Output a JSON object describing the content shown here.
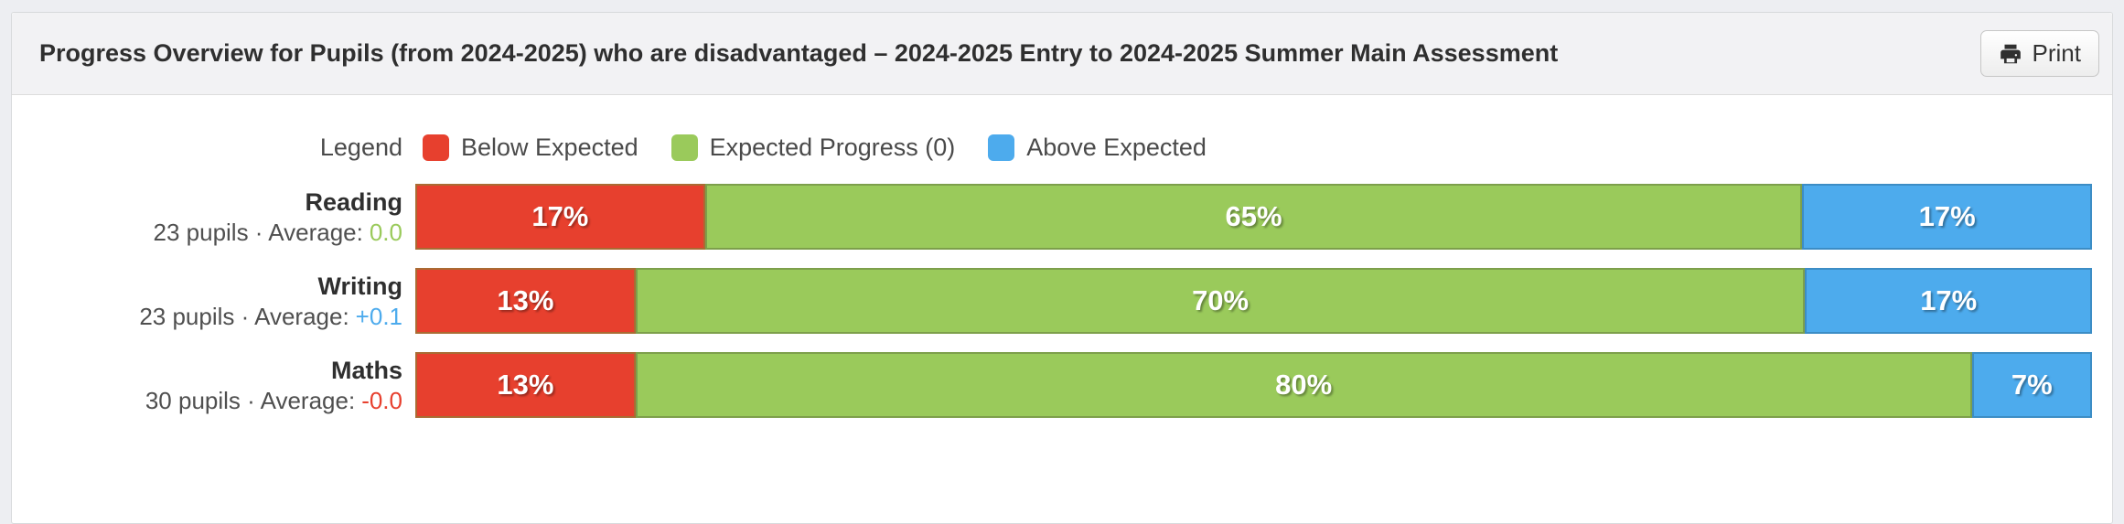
{
  "header": {
    "title": "Progress Overview for Pupils (from 2024-2025) who are disadvantaged – 2024-2025 Entry to 2024-2025 Summer Main Assessment",
    "print_label": "Print"
  },
  "legend": {
    "label": "Legend",
    "items": [
      {
        "key": "below-expected",
        "label": "Below Expected",
        "color": "#e7402e"
      },
      {
        "key": "expected-progress",
        "label": "Expected Progress (0)",
        "color": "#9aca5b"
      },
      {
        "key": "above-expected",
        "label": "Above Expected",
        "color": "#4dabed"
      }
    ]
  },
  "chart_data": {
    "type": "bar",
    "orientation": "horizontal-stacked",
    "value_unit": "%",
    "xlim": [
      0,
      100
    ],
    "categories": [
      "Reading",
      "Writing",
      "Maths"
    ],
    "series": [
      {
        "name": "Below Expected",
        "color": "#e7402e",
        "values": [
          17,
          13,
          13
        ]
      },
      {
        "name": "Expected Progress (0)",
        "color": "#9aca5b",
        "values": [
          65,
          70,
          80
        ]
      },
      {
        "name": "Above Expected",
        "color": "#4dabed",
        "values": [
          17,
          17,
          7
        ]
      }
    ],
    "rows": [
      {
        "label": "Reading",
        "sub_prefix": "23 pupils · Average:",
        "average": "0.0",
        "average_color": "#9aca5b",
        "segments": [
          {
            "key": "below-expected",
            "text": "17%",
            "value": 17,
            "fill": "#e7402e",
            "border": "#aa6b33"
          },
          {
            "key": "expected-progress",
            "text": "65%",
            "value": 65,
            "fill": "#9aca5b",
            "border": "#7d9f4b"
          },
          {
            "key": "above-expected",
            "text": "17%",
            "value": 17,
            "fill": "#4dabed",
            "border": "#3c8dc5"
          }
        ]
      },
      {
        "label": "Writing",
        "sub_prefix": "23 pupils · Average:",
        "average": "+0.1",
        "average_color": "#4dabed",
        "segments": [
          {
            "key": "below-expected",
            "text": "13%",
            "value": 13,
            "fill": "#e7402e",
            "border": "#aa6b33"
          },
          {
            "key": "expected-progress",
            "text": "70%",
            "value": 70,
            "fill": "#9aca5b",
            "border": "#7d9f4b"
          },
          {
            "key": "above-expected",
            "text": "17%",
            "value": 17,
            "fill": "#4dabed",
            "border": "#3c8dc5"
          }
        ]
      },
      {
        "label": "Maths",
        "sub_prefix": "30 pupils · Average:",
        "average": "-0.0",
        "average_color": "#e7402e",
        "segments": [
          {
            "key": "below-expected",
            "text": "13%",
            "value": 13,
            "fill": "#e7402e",
            "border": "#aa6b33"
          },
          {
            "key": "expected-progress",
            "text": "80%",
            "value": 80,
            "fill": "#9aca5b",
            "border": "#7d9f4b"
          },
          {
            "key": "above-expected",
            "text": "7%",
            "value": 7,
            "fill": "#4dabed",
            "border": "#3c8dc5"
          }
        ]
      }
    ]
  }
}
